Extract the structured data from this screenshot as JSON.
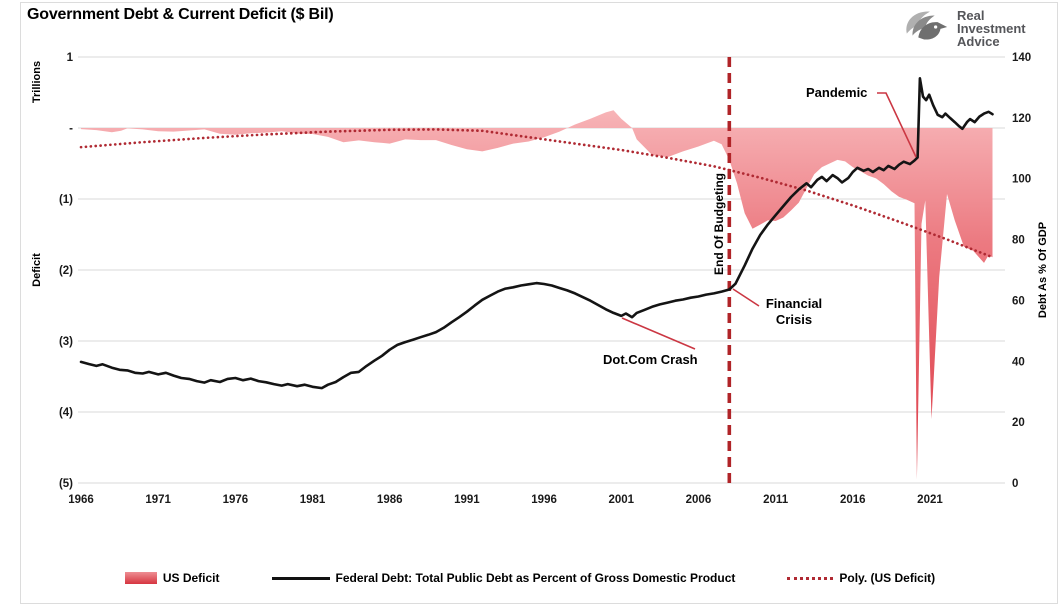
{
  "title": "Government Debt & Current Deficit ($ Bil)",
  "brand": {
    "name_lines": [
      "Real",
      "Investment",
      "Advice"
    ]
  },
  "axes": {
    "left_unit": "Trillions",
    "left_title": "Deficit",
    "right_title": "Debt As % Of GDP",
    "left_ticks": [
      "1",
      "-",
      "(1)",
      "(2)",
      "(3)",
      "(4)",
      "(5)"
    ],
    "right_ticks": [
      "140",
      "120",
      "100",
      "80",
      "60",
      "40",
      "20",
      "0"
    ],
    "x_tick_labels": [
      "1966",
      "1971",
      "1976",
      "1981",
      "1986",
      "1991",
      "1996",
      "2001",
      "2006",
      "2011",
      "2016",
      "2021"
    ]
  },
  "annotations": {
    "pandemic": "Pandemic",
    "financial_crisis_line1": "Financial",
    "financial_crisis_line2": "Crisis",
    "dotcom": "Dot.Com Crash",
    "end_of_budgeting": "End Of Budgeting"
  },
  "legend": [
    {
      "label": "US Deficit",
      "swatch": "area"
    },
    {
      "label": "Federal Debt: Total Public Debt as Percent of Gross Domestic Product",
      "swatch": "line"
    },
    {
      "label": "Poly. (US Deficit)",
      "swatch": "dotted"
    }
  ],
  "colors": {
    "deficit_area_top": "#F7B3B6",
    "deficit_area_mid": "#EC7A81",
    "deficit_area_bottom": "#DC3945",
    "debt_line": "#141414",
    "poly_line": "#B02A33",
    "event_line": "#B02428",
    "leader_line": "#CB3743",
    "gridline": "#D9D9D9",
    "logo_text": "#55565A"
  },
  "chart_data": {
    "type": "combo",
    "title": "Government Debt & Current Deficit ($ Bil)",
    "x_range": [
      1965.8,
      2025.3
    ],
    "x_ticks": [
      1966,
      1971,
      1976,
      1981,
      1986,
      1991,
      1996,
      2001,
      2006,
      2011,
      2016,
      2021
    ],
    "left_axis": {
      "title": "Deficit",
      "unit": "Trillions",
      "range": [
        -5,
        1
      ],
      "grid": true
    },
    "right_axis": {
      "title": "Debt As % Of GDP",
      "range": [
        0,
        140
      ],
      "grid": false
    },
    "event_line": {
      "x": 2008,
      "label": "End Of Budgeting"
    },
    "series": [
      {
        "name": "US Deficit",
        "type": "area",
        "axis": "left",
        "unit": "trillions USD (negative = deficit)",
        "points": [
          [
            1966,
            -0.015
          ],
          [
            1967,
            -0.03
          ],
          [
            1968,
            -0.06
          ],
          [
            1968.6,
            -0.04
          ],
          [
            1969,
            -0.005
          ],
          [
            1970,
            -0.02
          ],
          [
            1971,
            -0.045
          ],
          [
            1972,
            -0.05
          ],
          [
            1973,
            -0.035
          ],
          [
            1974,
            -0.02
          ],
          [
            1975,
            -0.08
          ],
          [
            1976,
            -0.095
          ],
          [
            1977,
            -0.075
          ],
          [
            1978,
            -0.065
          ],
          [
            1979,
            -0.045
          ],
          [
            1980,
            -0.078
          ],
          [
            1981,
            -0.085
          ],
          [
            1982,
            -0.125
          ],
          [
            1983,
            -0.2
          ],
          [
            1984,
            -0.175
          ],
          [
            1985,
            -0.2
          ],
          [
            1986,
            -0.22
          ],
          [
            1987,
            -0.16
          ],
          [
            1988,
            -0.17
          ],
          [
            1989,
            -0.17
          ],
          [
            1990,
            -0.24
          ],
          [
            1991,
            -0.3
          ],
          [
            1992,
            -0.33
          ],
          [
            1993,
            -0.28
          ],
          [
            1994,
            -0.22
          ],
          [
            1995,
            -0.19
          ],
          [
            1996,
            -0.13
          ],
          [
            1997,
            -0.05
          ],
          [
            1998,
            0.05
          ],
          [
            1999,
            0.13
          ],
          [
            2000,
            0.22
          ],
          [
            2000.5,
            0.25
          ],
          [
            2001,
            0.13
          ],
          [
            2001.7,
            0
          ],
          [
            2002,
            -0.16
          ],
          [
            2003,
            -0.38
          ],
          [
            2004,
            -0.41
          ],
          [
            2005,
            -0.33
          ],
          [
            2006,
            -0.26
          ],
          [
            2007,
            -0.18
          ],
          [
            2007.5,
            -0.23
          ],
          [
            2008,
            -0.45
          ],
          [
            2008.5,
            -0.78
          ],
          [
            2009,
            -1.2
          ],
          [
            2009.5,
            -1.42
          ],
          [
            2010,
            -1.36
          ],
          [
            2010.5,
            -1.3
          ],
          [
            2011,
            -1.31
          ],
          [
            2011.5,
            -1.26
          ],
          [
            2012,
            -1.16
          ],
          [
            2012.5,
            -1.05
          ],
          [
            2013,
            -0.85
          ],
          [
            2013.5,
            -0.65
          ],
          [
            2014,
            -0.55
          ],
          [
            2014.5,
            -0.5
          ],
          [
            2015,
            -0.45
          ],
          [
            2015.5,
            -0.47
          ],
          [
            2016,
            -0.55
          ],
          [
            2016.5,
            -0.61
          ],
          [
            2017,
            -0.67
          ],
          [
            2017.5,
            -0.71
          ],
          [
            2018,
            -0.79
          ],
          [
            2018.5,
            -0.89
          ],
          [
            2019,
            -0.97
          ],
          [
            2019.5,
            -1.01
          ],
          [
            2020,
            -1.06
          ],
          [
            2020.15,
            -4.95
          ],
          [
            2020.45,
            -1.35
          ],
          [
            2020.7,
            -1.02
          ],
          [
            2021.1,
            -4.1
          ],
          [
            2021.6,
            -2.1
          ],
          [
            2022.1,
            -0.93
          ],
          [
            2022.6,
            -1.3
          ],
          [
            2023.2,
            -1.67
          ],
          [
            2023.8,
            -1.73
          ],
          [
            2024.5,
            -1.9
          ],
          [
            2024.8,
            -1.79
          ],
          [
            2025.05,
            -1.82
          ]
        ]
      },
      {
        "name": "Federal Debt: Total Public Debt as Percent of Gross Domestic Product",
        "type": "line",
        "axis": "right",
        "unit": "% of GDP",
        "points": [
          [
            1966,
            39.8
          ],
          [
            1966.5,
            39.1
          ],
          [
            1967,
            38.5
          ],
          [
            1967.4,
            39
          ],
          [
            1968,
            37.9
          ],
          [
            1968.5,
            37.2
          ],
          [
            1969,
            37
          ],
          [
            1969.5,
            36.2
          ],
          [
            1970,
            36
          ],
          [
            1970.4,
            36.5
          ],
          [
            1971,
            35.7
          ],
          [
            1971.5,
            36.2
          ],
          [
            1972,
            35.3
          ],
          [
            1972.5,
            34.5
          ],
          [
            1973,
            34.2
          ],
          [
            1973.5,
            33.5
          ],
          [
            1974,
            33
          ],
          [
            1974.4,
            33.8
          ],
          [
            1975,
            33.2
          ],
          [
            1975.5,
            34.2
          ],
          [
            1976,
            34.5
          ],
          [
            1976.5,
            33.8
          ],
          [
            1977,
            34.3
          ],
          [
            1977.5,
            33.5
          ],
          [
            1978,
            33.1
          ],
          [
            1978.5,
            32.5
          ],
          [
            1979,
            32
          ],
          [
            1979.4,
            32.5
          ],
          [
            1980,
            31.8
          ],
          [
            1980.5,
            32.3
          ],
          [
            1981,
            31.6
          ],
          [
            1981.6,
            31.2
          ],
          [
            1982,
            32.3
          ],
          [
            1982.5,
            33.2
          ],
          [
            1983,
            34.8
          ],
          [
            1983.5,
            36.2
          ],
          [
            1984,
            36.5
          ],
          [
            1984.5,
            38.5
          ],
          [
            1985,
            40.2
          ],
          [
            1985.5,
            41.8
          ],
          [
            1986,
            43.8
          ],
          [
            1986.5,
            45.4
          ],
          [
            1987,
            46.3
          ],
          [
            1987.5,
            47.1
          ],
          [
            1988,
            47.9
          ],
          [
            1988.5,
            48.7
          ],
          [
            1989,
            49.6
          ],
          [
            1989.5,
            51
          ],
          [
            1990,
            52.8
          ],
          [
            1990.5,
            54.5
          ],
          [
            1991,
            56.3
          ],
          [
            1991.5,
            58.3
          ],
          [
            1992,
            60.2
          ],
          [
            1992.5,
            61.6
          ],
          [
            1993,
            62.9
          ],
          [
            1993.5,
            63.9
          ],
          [
            1994,
            64.3
          ],
          [
            1994.5,
            64.9
          ],
          [
            1995,
            65.3
          ],
          [
            1995.5,
            65.7
          ],
          [
            1996,
            65.4
          ],
          [
            1996.5,
            64.9
          ],
          [
            1997,
            64.1
          ],
          [
            1997.5,
            63.3
          ],
          [
            1998,
            62.3
          ],
          [
            1998.5,
            61.1
          ],
          [
            1999,
            59.9
          ],
          [
            1999.5,
            58.5
          ],
          [
            2000,
            57.1
          ],
          [
            2000.5,
            55.9
          ],
          [
            2001,
            54.9
          ],
          [
            2001.3,
            55.7
          ],
          [
            2001.7,
            54.5
          ],
          [
            2002,
            55.9
          ],
          [
            2002.5,
            56.9
          ],
          [
            2003,
            57.9
          ],
          [
            2003.5,
            58.7
          ],
          [
            2004,
            59.3
          ],
          [
            2004.5,
            59.9
          ],
          [
            2005,
            60.3
          ],
          [
            2005.5,
            60.9
          ],
          [
            2006,
            61.3
          ],
          [
            2006.5,
            61.9
          ],
          [
            2007,
            62.3
          ],
          [
            2007.5,
            62.9
          ],
          [
            2008,
            63.6
          ],
          [
            2008.4,
            65.5
          ],
          [
            2009,
            71.5
          ],
          [
            2009.5,
            77
          ],
          [
            2010,
            81.5
          ],
          [
            2010.5,
            85
          ],
          [
            2011,
            88
          ],
          [
            2011.5,
            91
          ],
          [
            2012,
            94
          ],
          [
            2012.5,
            96.5
          ],
          [
            2013,
            98.5
          ],
          [
            2013.3,
            97.2
          ],
          [
            2013.7,
            99.6
          ],
          [
            2014,
            100.6
          ],
          [
            2014.3,
            99.2
          ],
          [
            2014.7,
            101.2
          ],
          [
            2015,
            100.2
          ],
          [
            2015.3,
            98.8
          ],
          [
            2015.7,
            100.2
          ],
          [
            2016,
            102.2
          ],
          [
            2016.3,
            103.6
          ],
          [
            2016.7,
            102.6
          ],
          [
            2017,
            103.2
          ],
          [
            2017.3,
            102.2
          ],
          [
            2017.7,
            103.6
          ],
          [
            2018,
            102.8
          ],
          [
            2018.3,
            104.2
          ],
          [
            2018.7,
            103.2
          ],
          [
            2019,
            104.6
          ],
          [
            2019.3,
            105.6
          ],
          [
            2019.7,
            104.8
          ],
          [
            2020,
            106
          ],
          [
            2020.2,
            107
          ],
          [
            2020.35,
            133
          ],
          [
            2020.55,
            127
          ],
          [
            2020.75,
            125.8
          ],
          [
            2020.95,
            127.6
          ],
          [
            2021.2,
            124.2
          ],
          [
            2021.5,
            121
          ],
          [
            2021.8,
            120.2
          ],
          [
            2022,
            121.4
          ],
          [
            2022.3,
            120
          ],
          [
            2022.6,
            118.6
          ],
          [
            2022.9,
            117.2
          ],
          [
            2023.1,
            116.4
          ],
          [
            2023.4,
            118.6
          ],
          [
            2023.6,
            119.6
          ],
          [
            2023.9,
            118.6
          ],
          [
            2024.2,
            120.4
          ],
          [
            2024.5,
            121.4
          ],
          [
            2024.8,
            122
          ],
          [
            2025.05,
            121.2
          ]
        ]
      },
      {
        "name": "Poly. (US Deficit)",
        "type": "dotted-trendline",
        "axis": "left",
        "unit": "trillions USD",
        "points": [
          [
            1966,
            -0.27
          ],
          [
            1970,
            -0.2
          ],
          [
            1974,
            -0.14
          ],
          [
            1978,
            -0.09
          ],
          [
            1982,
            -0.05
          ],
          [
            1986,
            -0.025
          ],
          [
            1989,
            -0.02
          ],
          [
            1992,
            -0.04
          ],
          [
            1995,
            -0.13
          ],
          [
            1998,
            -0.22
          ],
          [
            2001,
            -0.31
          ],
          [
            2004,
            -0.42
          ],
          [
            2007,
            -0.54
          ],
          [
            2010,
            -0.7
          ],
          [
            2013,
            -0.88
          ],
          [
            2016,
            -1.09
          ],
          [
            2019,
            -1.32
          ],
          [
            2022,
            -1.56
          ],
          [
            2025.05,
            -1.82
          ]
        ]
      }
    ],
    "annotations": [
      {
        "text": "Pandemic",
        "target_x": 2020.2
      },
      {
        "text": "Financial Crisis",
        "target_x": 2008.2
      },
      {
        "text": "Dot.Com Crash",
        "target_x": 2001
      },
      {
        "text": "End Of Budgeting",
        "target_x": 2008
      }
    ]
  }
}
